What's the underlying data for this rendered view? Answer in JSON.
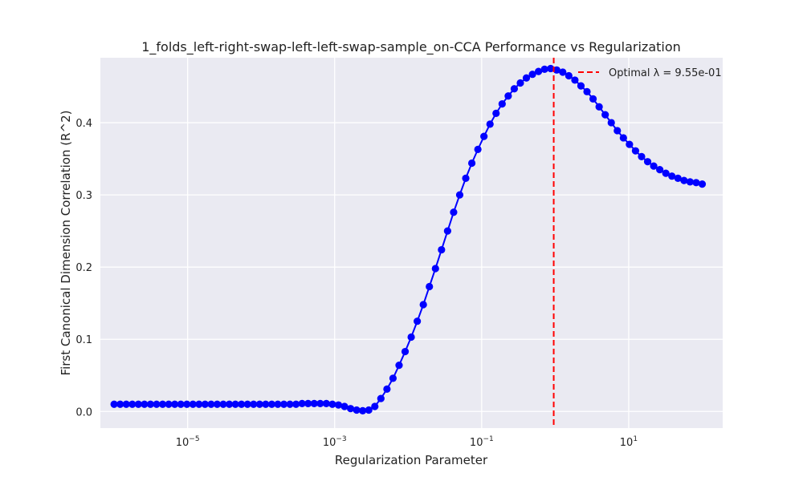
{
  "chart_data": {
    "type": "line",
    "title": "1_folds_left-right-swap-left-left-swap-sample_on-CCA Performance vs Regularization",
    "xlabel": "Regularization Parameter",
    "ylabel": "First Canonical Dimension Correlation (R^2)",
    "x_scale": "log",
    "xlim": [
      6.5e-07,
      190
    ],
    "ylim": [
      -0.023,
      0.49
    ],
    "x_ticks": [
      {
        "value": 1e-05,
        "base": "10",
        "exp": "−5"
      },
      {
        "value": 0.001,
        "base": "10",
        "exp": "−3"
      },
      {
        "value": 0.1,
        "base": "10",
        "exp": "−1"
      },
      {
        "value": 10,
        "base": "10",
        "exp": "1"
      }
    ],
    "y_ticks": [
      {
        "value": 0.0,
        "label": "0.0"
      },
      {
        "value": 0.1,
        "label": "0.1"
      },
      {
        "value": 0.2,
        "label": "0.2"
      },
      {
        "value": 0.3,
        "label": "0.3"
      },
      {
        "value": 0.4,
        "label": "0.4"
      }
    ],
    "grid": true,
    "legend_position": "top-right",
    "optimal_line": {
      "x": 0.955,
      "label": "Optimal λ = 9.55e-01",
      "color": "#ff0000"
    },
    "series": [
      {
        "color": "#0000ff",
        "log10_x_range": [
          -6,
          2
        ],
        "values": [
          0.01,
          0.01,
          0.01,
          0.01,
          0.01,
          0.01,
          0.01,
          0.01,
          0.01,
          0.01,
          0.01,
          0.01,
          0.01,
          0.01,
          0.01,
          0.01,
          0.01,
          0.01,
          0.01,
          0.01,
          0.01,
          0.01,
          0.01,
          0.01,
          0.01,
          0.01,
          0.01,
          0.01,
          0.01,
          0.01,
          0.01,
          0.011,
          0.011,
          0.011,
          0.011,
          0.011,
          0.01,
          0.009,
          0.007,
          0.004,
          0.002,
          0.001,
          0.002,
          0.007,
          0.018,
          0.031,
          0.046,
          0.064,
          0.083,
          0.103,
          0.125,
          0.148,
          0.173,
          0.198,
          0.224,
          0.25,
          0.276,
          0.3,
          0.323,
          0.344,
          0.363,
          0.381,
          0.398,
          0.413,
          0.426,
          0.437,
          0.447,
          0.455,
          0.462,
          0.467,
          0.471,
          0.474,
          0.475,
          0.473,
          0.47,
          0.465,
          0.459,
          0.451,
          0.443,
          0.433,
          0.422,
          0.411,
          0.4,
          0.389,
          0.379,
          0.37,
          0.361,
          0.353,
          0.346,
          0.34,
          0.335,
          0.33,
          0.326,
          0.323,
          0.32,
          0.318,
          0.317,
          0.315
        ]
      }
    ]
  }
}
